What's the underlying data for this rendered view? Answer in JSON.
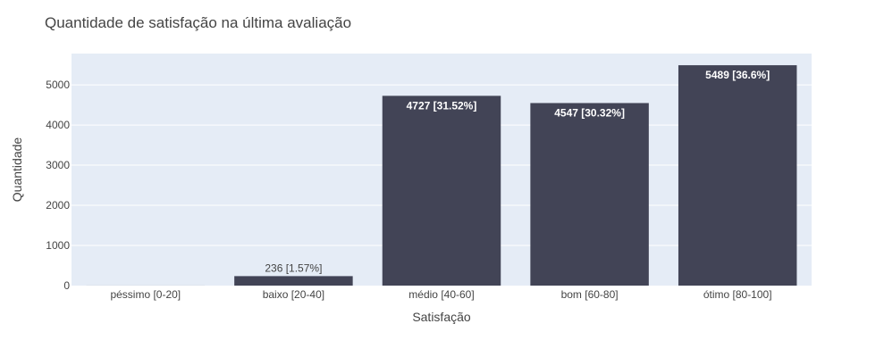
{
  "chart_data": {
    "type": "bar",
    "title": "Quantidade de satisfação na última avaliação",
    "xlabel": "Satisfação",
    "ylabel": "Quantidade",
    "categories": [
      "péssimo [0-20]",
      "baixo [20-40]",
      "médio [40-60]",
      "bom [60-80]",
      "ótimo [80-100]"
    ],
    "values": [
      1,
      236,
      4727,
      4547,
      5489
    ],
    "labels": [
      "",
      "236 [1.57%]",
      "4727 [31.52%]",
      "4547 [30.32%]",
      "5489 [36.6%]"
    ],
    "ylim": [
      0,
      5780
    ],
    "yticks": [
      0,
      1000,
      2000,
      3000,
      4000,
      5000
    ],
    "grid": true,
    "colors": {
      "bar": "#424456",
      "plot_bg": "#e5ecf6",
      "grid": "#ffffff"
    }
  }
}
